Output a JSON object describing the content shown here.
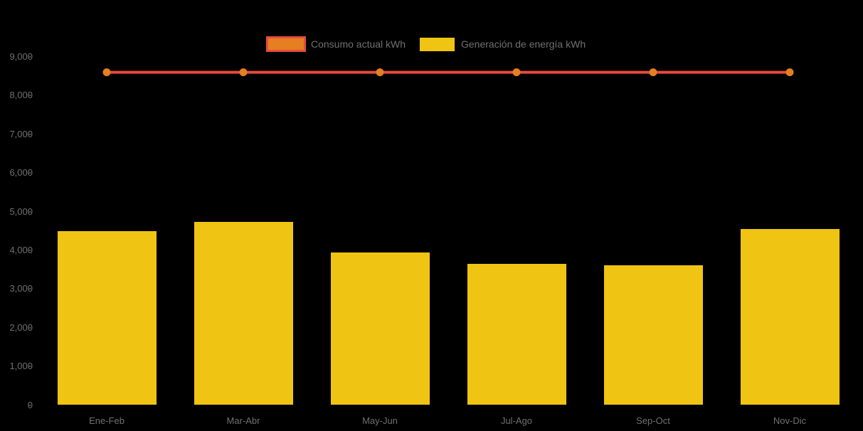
{
  "background": "#000000",
  "text_color": "#707070",
  "legend": {
    "items": [
      {
        "label": "Consumo actual kWh",
        "swatch_fill": "#E67E22",
        "swatch_border": "#E74C3C"
      },
      {
        "label": "Generación de energía kWh",
        "swatch_fill": "#F0C413",
        "swatch_border": "#F0C413"
      }
    ]
  },
  "chart_data": {
    "type": "bar",
    "subtype": "bar-with-line-overlay",
    "title": "",
    "xlabel": "",
    "ylabel": "",
    "categories": [
      "Ene-Feb",
      "Mar-Abr",
      "May-Jun",
      "Jul-Ago",
      "Sep-Oct",
      "Nov-Dic"
    ],
    "series": [
      {
        "name": "Consumo actual kWh",
        "type": "line",
        "color": "#E74C3C",
        "marker_color": "#E67E22",
        "values": [
          8600,
          8600,
          8600,
          8600,
          8600,
          8600
        ]
      },
      {
        "name": "Generación de energía kWh",
        "type": "bar",
        "color": "#F0C413",
        "values": [
          4500,
          4730,
          3950,
          3640,
          3610,
          4550
        ]
      }
    ],
    "ylim": [
      0,
      9000
    ],
    "y_ticks": [
      0,
      1000,
      2000,
      3000,
      4000,
      5000,
      6000,
      7000,
      8000,
      9000
    ],
    "y_tick_labels": [
      "0",
      "1,000",
      "2,000",
      "3,000",
      "4,000",
      "5,000",
      "6,000",
      "7,000",
      "8,000",
      "9,000"
    ],
    "grid": false,
    "legend_position": "top-center"
  }
}
